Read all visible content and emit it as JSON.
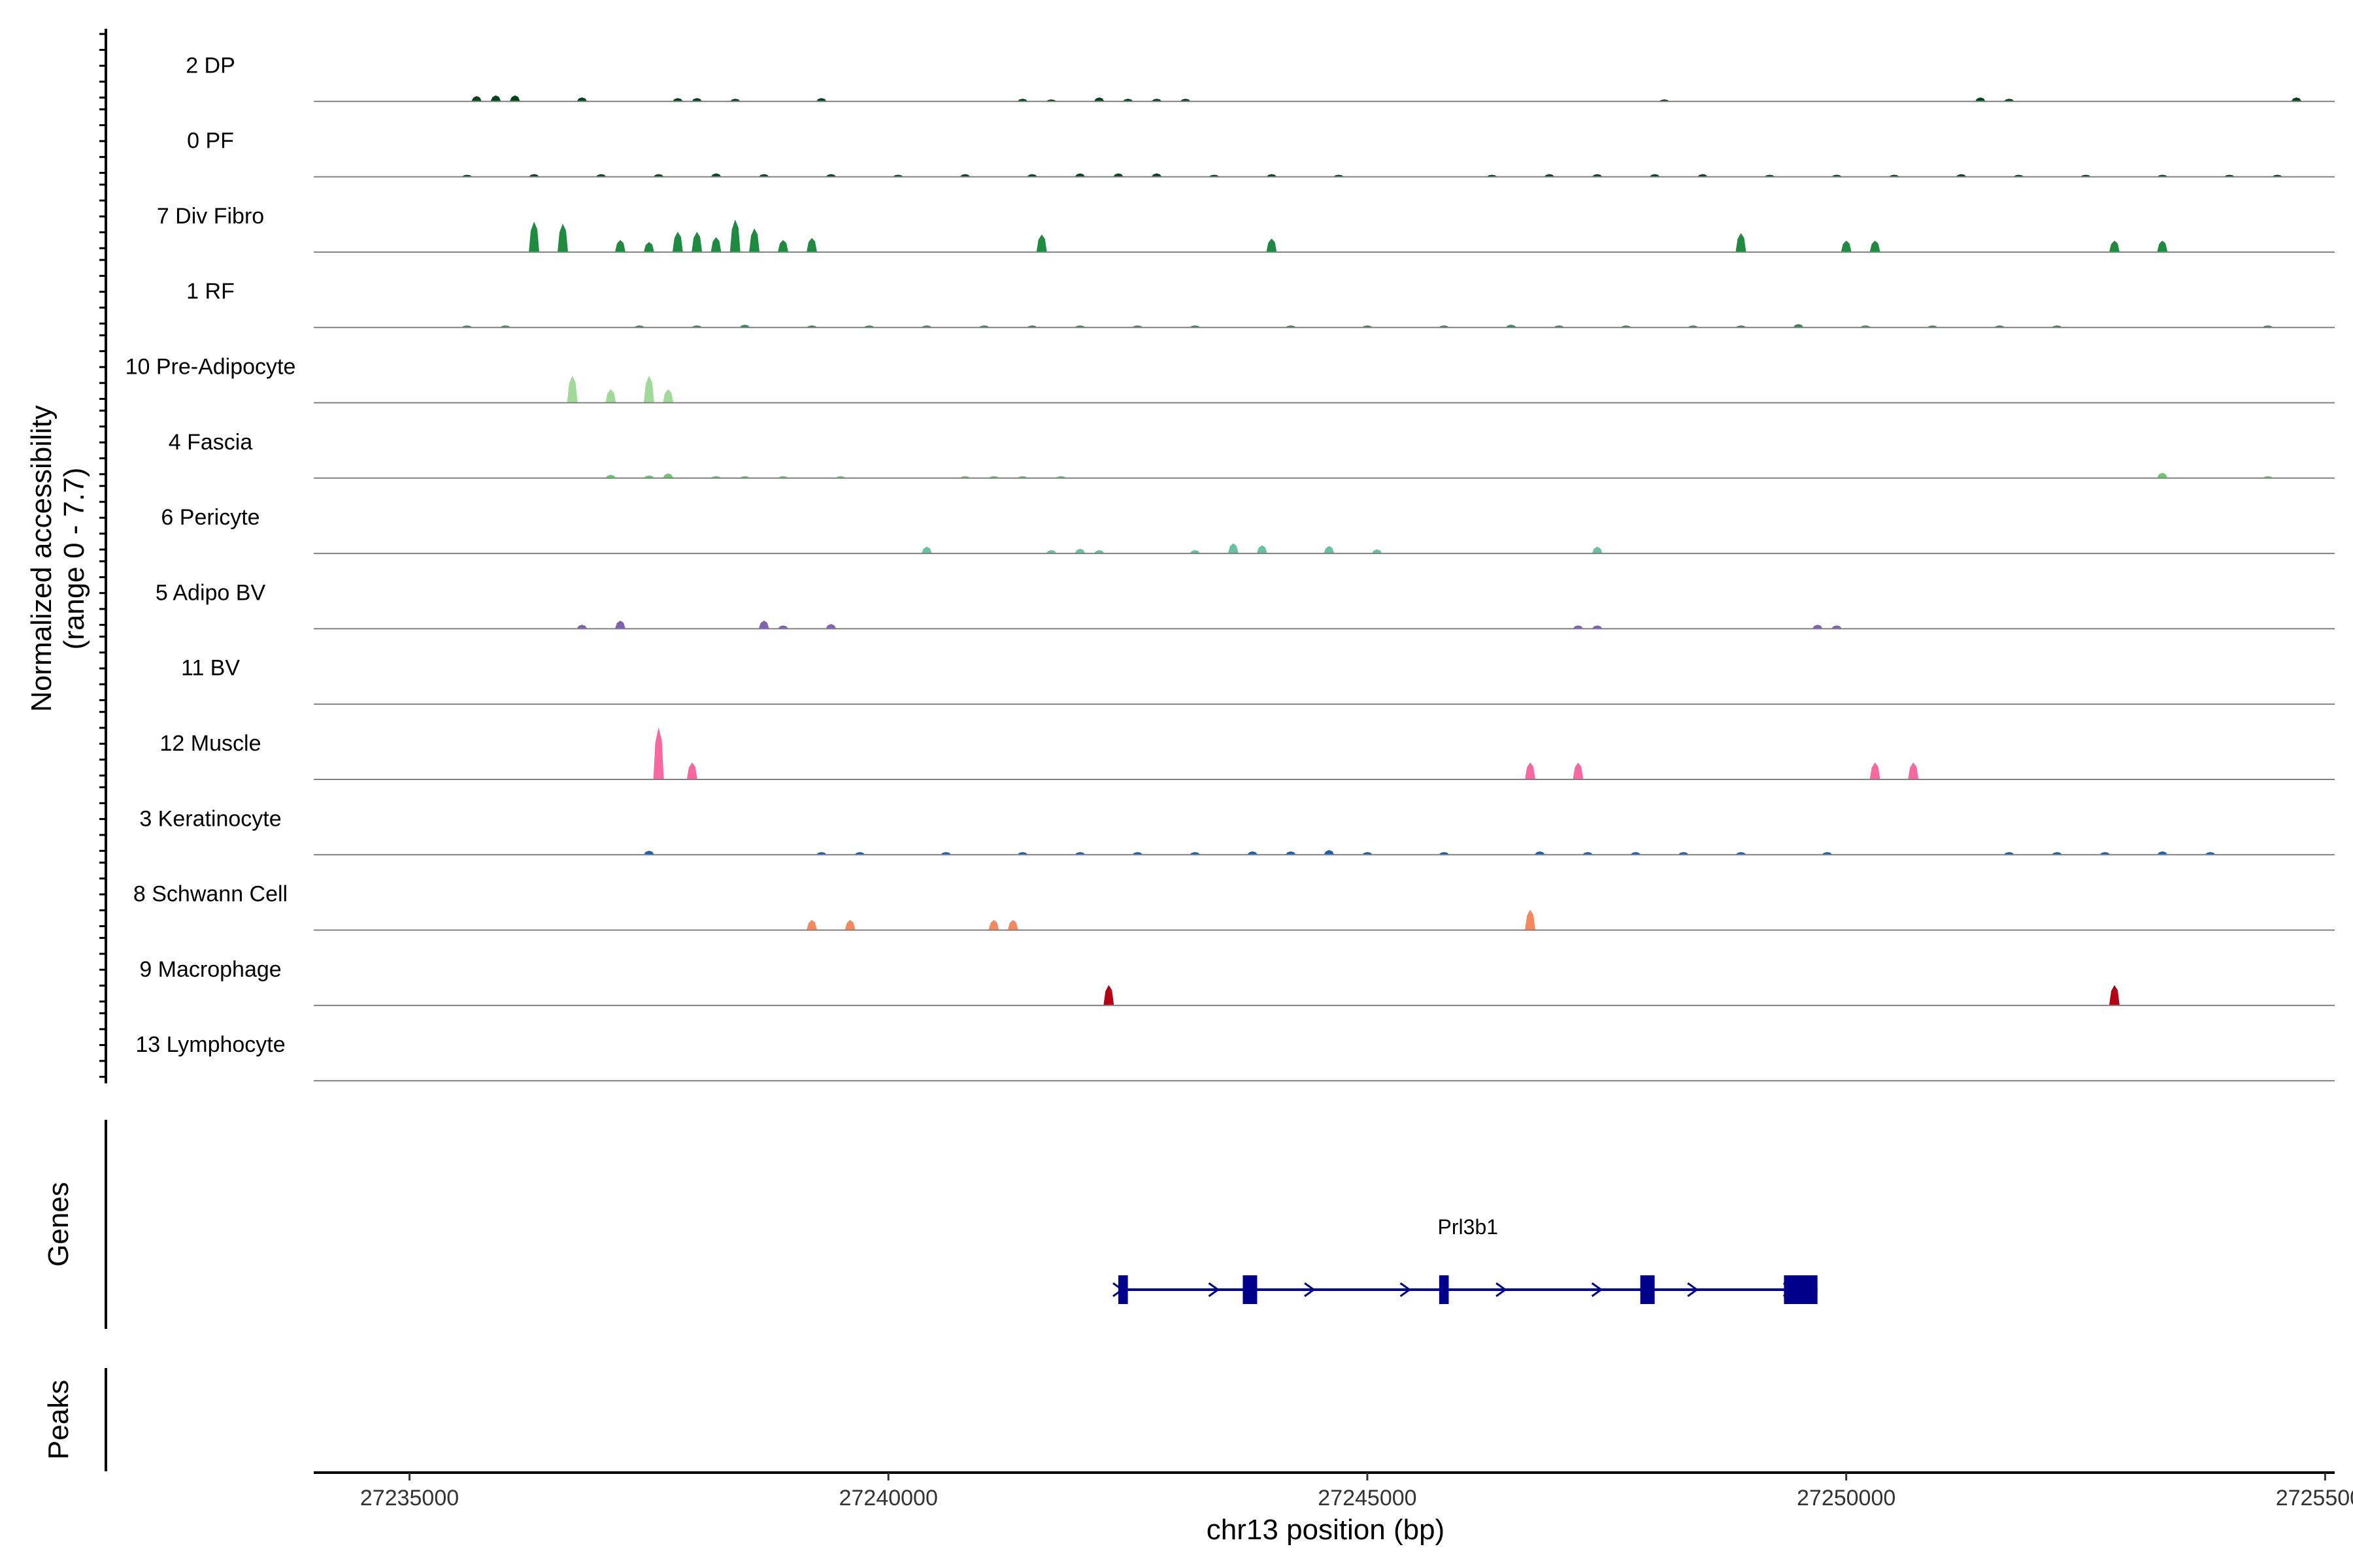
{
  "chart_data": {
    "type": "coverage-tracks",
    "title": "",
    "region": {
      "chrom": "chr13",
      "start": 27234000,
      "end": 27255100
    },
    "xlabel": "chr13 position (bp)",
    "x_ticks": [
      27235000,
      27240000,
      27245000,
      27250000,
      27255000
    ],
    "x_tick_labels": [
      "27235000",
      "27240000",
      "27245000",
      "27250000",
      "27255000"
    ],
    "ylabel_line1": "Normalized accessibility",
    "ylabel_line2": "(range 0 - 7.7)",
    "y_range": [
      0,
      7.7
    ],
    "tracks": [
      {
        "label": "2 DP",
        "color": "#00441b",
        "peaks": [
          [
            27235700,
            0.8
          ],
          [
            27235900,
            0.9
          ],
          [
            27236100,
            0.9
          ],
          [
            27236800,
            0.6
          ],
          [
            27237800,
            0.5
          ],
          [
            27238000,
            0.5
          ],
          [
            27238400,
            0.4
          ],
          [
            27239300,
            0.5
          ],
          [
            27241400,
            0.4
          ],
          [
            27241700,
            0.3
          ],
          [
            27242200,
            0.6
          ],
          [
            27242500,
            0.4
          ],
          [
            27242800,
            0.4
          ],
          [
            27243100,
            0.4
          ],
          [
            27248100,
            0.3
          ],
          [
            27251400,
            0.6
          ],
          [
            27251700,
            0.4
          ],
          [
            27254700,
            0.6
          ]
        ]
      },
      {
        "label": "0 PF",
        "color": "#00441b",
        "peaks": [
          [
            27235600,
            0.3
          ],
          [
            27236300,
            0.4
          ],
          [
            27237000,
            0.4
          ],
          [
            27237600,
            0.4
          ],
          [
            27238200,
            0.5
          ],
          [
            27238700,
            0.4
          ],
          [
            27239400,
            0.4
          ],
          [
            27240100,
            0.3
          ],
          [
            27240800,
            0.4
          ],
          [
            27241500,
            0.4
          ],
          [
            27242000,
            0.5
          ],
          [
            27242400,
            0.5
          ],
          [
            27242800,
            0.5
          ],
          [
            27243400,
            0.3
          ],
          [
            27244000,
            0.4
          ],
          [
            27244700,
            0.3
          ],
          [
            27246300,
            0.3
          ],
          [
            27246900,
            0.4
          ],
          [
            27247400,
            0.4
          ],
          [
            27248000,
            0.4
          ],
          [
            27248500,
            0.4
          ],
          [
            27249200,
            0.3
          ],
          [
            27249900,
            0.3
          ],
          [
            27250500,
            0.3
          ],
          [
            27251200,
            0.4
          ],
          [
            27251800,
            0.3
          ],
          [
            27252500,
            0.3
          ],
          [
            27253300,
            0.3
          ],
          [
            27254000,
            0.3
          ],
          [
            27254500,
            0.3
          ]
        ]
      },
      {
        "label": "7 Div Fibro",
        "color": "#1f8b41",
        "peaks": [
          [
            27236300,
            4.5
          ],
          [
            27236600,
            4.2
          ],
          [
            27237200,
            1.8
          ],
          [
            27237500,
            1.5
          ],
          [
            27237800,
            3.0
          ],
          [
            27238000,
            3.0
          ],
          [
            27238200,
            2.2
          ],
          [
            27238400,
            4.8
          ],
          [
            27238600,
            3.5
          ],
          [
            27238900,
            1.8
          ],
          [
            27239200,
            2.1
          ],
          [
            27241600,
            2.6
          ],
          [
            27244000,
            2.0
          ],
          [
            27248900,
            2.8
          ],
          [
            27250000,
            1.7
          ],
          [
            27250300,
            1.7
          ],
          [
            27252800,
            1.7
          ],
          [
            27253300,
            1.7
          ]
        ]
      },
      {
        "label": "1 RF",
        "color": "#2e8b57",
        "peaks": [
          [
            27235600,
            0.3
          ],
          [
            27236000,
            0.3
          ],
          [
            27237400,
            0.3
          ],
          [
            27238000,
            0.3
          ],
          [
            27238500,
            0.4
          ],
          [
            27239200,
            0.3
          ],
          [
            27239800,
            0.3
          ],
          [
            27240400,
            0.3
          ],
          [
            27241000,
            0.3
          ],
          [
            27241500,
            0.3
          ],
          [
            27242000,
            0.3
          ],
          [
            27242600,
            0.3
          ],
          [
            27243200,
            0.3
          ],
          [
            27244200,
            0.3
          ],
          [
            27245000,
            0.3
          ],
          [
            27245800,
            0.3
          ],
          [
            27246500,
            0.4
          ],
          [
            27247000,
            0.3
          ],
          [
            27247700,
            0.3
          ],
          [
            27248400,
            0.3
          ],
          [
            27248900,
            0.3
          ],
          [
            27249500,
            0.5
          ],
          [
            27250200,
            0.3
          ],
          [
            27250900,
            0.3
          ],
          [
            27251600,
            0.3
          ],
          [
            27252200,
            0.3
          ],
          [
            27254400,
            0.3
          ]
        ]
      },
      {
        "label": "10 Pre-Adipocyte",
        "color": "#a1d99b",
        "peaks": [
          [
            27236700,
            4.0
          ],
          [
            27237100,
            2.0
          ],
          [
            27237500,
            4.0
          ],
          [
            27237700,
            2.0
          ]
        ]
      },
      {
        "label": "4 Fascia",
        "color": "#74c476",
        "peaks": [
          [
            27237100,
            0.5
          ],
          [
            27237500,
            0.4
          ],
          [
            27237700,
            0.7
          ],
          [
            27238200,
            0.3
          ],
          [
            27238500,
            0.3
          ],
          [
            27238900,
            0.3
          ],
          [
            27239500,
            0.3
          ],
          [
            27240800,
            0.3
          ],
          [
            27241100,
            0.3
          ],
          [
            27241400,
            0.3
          ],
          [
            27241800,
            0.3
          ],
          [
            27253300,
            0.8
          ],
          [
            27254400,
            0.3
          ]
        ]
      },
      {
        "label": "6 Pericyte",
        "color": "#66c2a5",
        "peaks": [
          [
            27240400,
            1.0
          ],
          [
            27241700,
            0.5
          ],
          [
            27242000,
            0.7
          ],
          [
            27242200,
            0.5
          ],
          [
            27243200,
            0.5
          ],
          [
            27243600,
            1.5
          ],
          [
            27243900,
            1.2
          ],
          [
            27244600,
            1.1
          ],
          [
            27245100,
            0.6
          ],
          [
            27247400,
            1.0
          ]
        ]
      },
      {
        "label": "5 Adipo BV",
        "color": "#8062b1",
        "peaks": [
          [
            27236800,
            0.6
          ],
          [
            27237200,
            1.2
          ],
          [
            27238700,
            1.2
          ],
          [
            27238900,
            0.5
          ],
          [
            27239400,
            0.7
          ],
          [
            27247200,
            0.5
          ],
          [
            27247400,
            0.5
          ],
          [
            27249700,
            0.6
          ],
          [
            27249900,
            0.5
          ]
        ]
      },
      {
        "label": "11 BV",
        "color": "#6a51a3",
        "peaks": []
      },
      {
        "label": "12 Muscle",
        "color": "#f768a1",
        "peaks": [
          [
            27237600,
            7.7
          ],
          [
            27237950,
            2.5
          ],
          [
            27246700,
            2.5
          ],
          [
            27247200,
            2.5
          ],
          [
            27250300,
            2.5
          ],
          [
            27250700,
            2.5
          ]
        ]
      },
      {
        "label": "3 Keratinocyte",
        "color": "#225ea8",
        "peaks": [
          [
            27237500,
            0.6
          ],
          [
            27239300,
            0.4
          ],
          [
            27239700,
            0.4
          ],
          [
            27240600,
            0.4
          ],
          [
            27241400,
            0.4
          ],
          [
            27242000,
            0.4
          ],
          [
            27242600,
            0.4
          ],
          [
            27243200,
            0.4
          ],
          [
            27243800,
            0.5
          ],
          [
            27244200,
            0.5
          ],
          [
            27244600,
            0.7
          ],
          [
            27245000,
            0.4
          ],
          [
            27245800,
            0.4
          ],
          [
            27246800,
            0.5
          ],
          [
            27247300,
            0.4
          ],
          [
            27247800,
            0.4
          ],
          [
            27248300,
            0.4
          ],
          [
            27248900,
            0.4
          ],
          [
            27249800,
            0.4
          ],
          [
            27251700,
            0.4
          ],
          [
            27252200,
            0.4
          ],
          [
            27252700,
            0.4
          ],
          [
            27253300,
            0.5
          ],
          [
            27253800,
            0.4
          ]
        ]
      },
      {
        "label": "8 Schwann Cell",
        "color": "#f4895f",
        "peaks": [
          [
            27239200,
            1.5
          ],
          [
            27239600,
            1.5
          ],
          [
            27241100,
            1.5
          ],
          [
            27241300,
            1.5
          ],
          [
            27246700,
            3.0
          ]
        ]
      },
      {
        "label": "9 Macrophage",
        "color": "#b30016",
        "peaks": [
          [
            27242300,
            3.0
          ],
          [
            27252800,
            3.0
          ]
        ]
      },
      {
        "label": "13 Lymphocyte",
        "color": "#990000",
        "peaks": []
      }
    ],
    "gene": {
      "name": "Prl3b1",
      "strand": "+",
      "start": 27242400,
      "end": 27249700,
      "exons": [
        [
          27242400,
          27242500
        ],
        [
          27243700,
          27243850
        ],
        [
          27245750,
          27245850
        ],
        [
          27247850,
          27248000
        ],
        [
          27249350,
          27249700
        ]
      ],
      "color": "#00008b"
    },
    "genes_label": "Genes",
    "peaks_label": "Peaks"
  }
}
